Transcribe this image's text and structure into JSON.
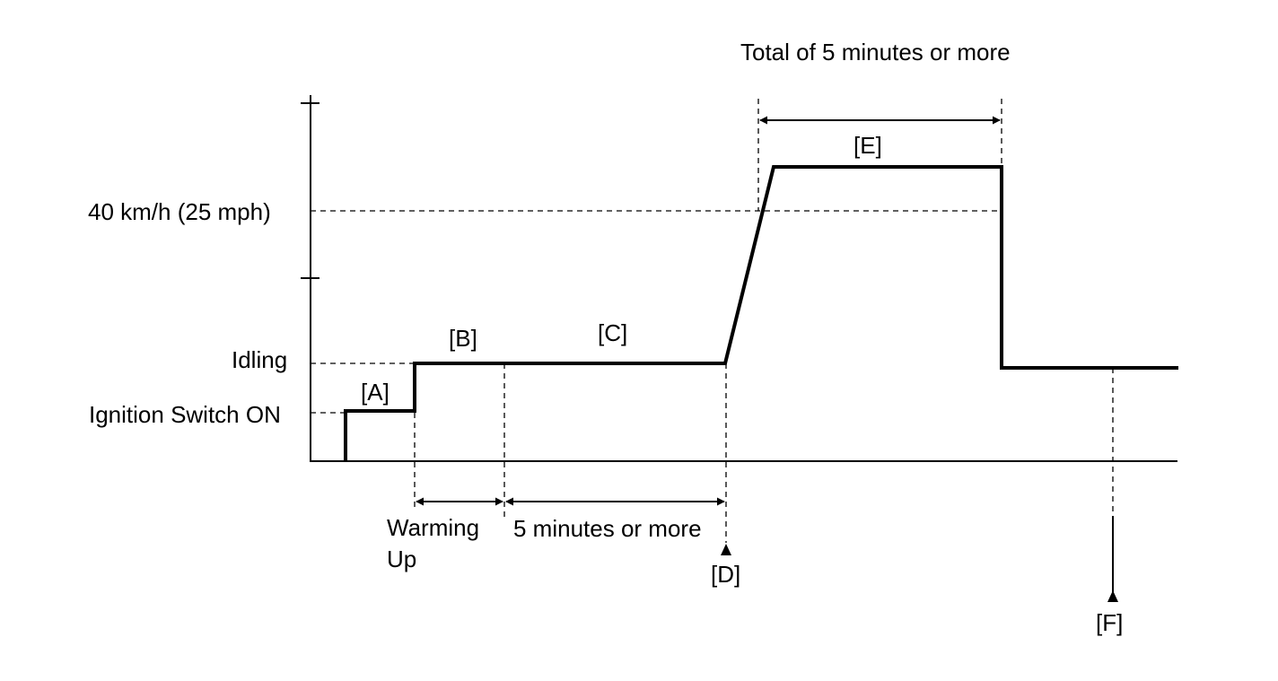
{
  "y_levels": {
    "speed_label": "40 km/h (25 mph)",
    "idling_label": "Idling",
    "ignition_label": "Ignition Switch ON"
  },
  "segments": {
    "a": "[A]",
    "b": "[B]",
    "c": "[C]",
    "e": "[E]"
  },
  "markers": {
    "d": "[D]",
    "f": "[F]"
  },
  "durations": {
    "warming_up_line1": "Warming",
    "warming_up_line2": "Up",
    "five_minutes": "5 minutes or more",
    "total_five_minutes": "Total of 5 minutes or more"
  }
}
